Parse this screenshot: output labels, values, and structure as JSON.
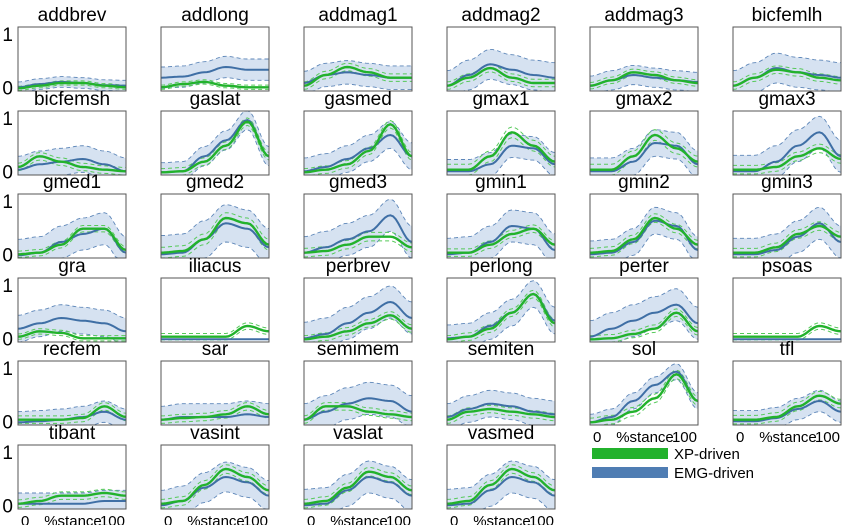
{
  "colors": {
    "xp_line": "#22b22c",
    "xp_dashed": "#56c95a",
    "emg_line": "#3f6fa5",
    "emg_band": "#d6e2f1",
    "emg_dashed": "#5d86b8",
    "frame": "#555555"
  },
  "legend": {
    "items": [
      {
        "label": "XP-driven",
        "color": "#22b22c"
      },
      {
        "label": "EMG-driven",
        "color": "#4f7db3"
      }
    ]
  },
  "x_axis": {
    "start_label": "0",
    "end_label": "100",
    "name": "%stance"
  },
  "chart_data": {
    "type": "line",
    "xlim": [
      0,
      100
    ],
    "ylim": [
      -0.05,
      1.15
    ],
    "yticks": [
      0,
      1
    ],
    "panels": [
      {
        "name": "addbrev",
        "xp": [
          0,
          0.05,
          0.1,
          0.1,
          0.05,
          0.02
        ],
        "emg": [
          0.02,
          0.08,
          0.12,
          0.1,
          0.06,
          0.05
        ],
        "emg_sd": 0.1,
        "xp_sd": 0.04
      },
      {
        "name": "addlong",
        "xp": [
          0.02,
          0.08,
          0.12,
          0.05,
          0.02,
          0.02
        ],
        "emg": [
          0.2,
          0.22,
          0.3,
          0.4,
          0.35,
          0.35
        ],
        "emg_sd": 0.2,
        "xp_sd": 0.04
      },
      {
        "name": "addmag1",
        "xp": [
          0.05,
          0.25,
          0.4,
          0.3,
          0.2,
          0.2
        ],
        "emg": [
          0.1,
          0.25,
          0.3,
          0.25,
          0.2,
          0.2
        ],
        "emg_sd": 0.22,
        "xp_sd": 0.07
      },
      {
        "name": "addmag2",
        "xp": [
          0.05,
          0.2,
          0.38,
          0.2,
          0.1,
          0.1
        ],
        "emg": [
          0.05,
          0.25,
          0.45,
          0.35,
          0.25,
          0.2
        ],
        "emg_sd": 0.28,
        "xp_sd": 0.07
      },
      {
        "name": "addmag3",
        "xp": [
          0.05,
          0.15,
          0.3,
          0.25,
          0.15,
          0.1
        ],
        "emg": [
          0.05,
          0.15,
          0.25,
          0.2,
          0.15,
          0.12
        ],
        "emg_sd": 0.18,
        "xp_sd": 0.06
      },
      {
        "name": "bicfemlh",
        "xp": [
          0.05,
          0.2,
          0.35,
          0.3,
          0.2,
          0.15
        ],
        "emg": [
          0.05,
          0.2,
          0.38,
          0.3,
          0.25,
          0.2
        ],
        "emg_sd": 0.28,
        "xp_sd": 0.07
      },
      {
        "name": "bicfemsh",
        "xp": [
          0.1,
          0.3,
          0.2,
          0.1,
          0.05,
          0.02
        ],
        "emg": [
          0.05,
          0.15,
          0.2,
          0.25,
          0.15,
          0.02
        ],
        "emg_sd": 0.25,
        "xp_sd": 0.07
      },
      {
        "name": "gaslat",
        "xp": [
          0,
          0.02,
          0.2,
          0.5,
          0.95,
          0.3
        ],
        "emg": [
          0,
          0.02,
          0.3,
          0.6,
          0.98,
          0.3
        ],
        "emg_sd": 0.18,
        "xp_sd": 0.07
      },
      {
        "name": "gasmed",
        "xp": [
          0,
          0.05,
          0.15,
          0.4,
          0.9,
          0.3
        ],
        "emg": [
          0.02,
          0.1,
          0.25,
          0.45,
          0.7,
          0.3
        ],
        "emg_sd": 0.25,
        "xp_sd": 0.07
      },
      {
        "name": "gmax1",
        "xp": [
          0.05,
          0.05,
          0.3,
          0.75,
          0.5,
          0.2
        ],
        "emg": [
          0.02,
          0.02,
          0.15,
          0.5,
          0.45,
          0.15
        ],
        "emg_sd": 0.22,
        "xp_sd": 0.1
      },
      {
        "name": "gmax2",
        "xp": [
          0.05,
          0.05,
          0.3,
          0.7,
          0.45,
          0.2
        ],
        "emg": [
          0.02,
          0.02,
          0.2,
          0.55,
          0.5,
          0.15
        ],
        "emg_sd": 0.25,
        "xp_sd": 0.1
      },
      {
        "name": "gmax3",
        "xp": [
          0.05,
          0.05,
          0.1,
          0.3,
          0.45,
          0.25
        ],
        "emg": [
          0.02,
          0.02,
          0.2,
          0.5,
          0.75,
          0.3
        ],
        "emg_sd": 0.3,
        "xp_sd": 0.08
      },
      {
        "name": "gmed1",
        "xp": [
          0.02,
          0.05,
          0.2,
          0.5,
          0.5,
          0.1
        ],
        "emg": [
          0,
          0.05,
          0.25,
          0.4,
          0.5,
          0.05
        ],
        "emg_sd": 0.3,
        "xp_sd": 0.06
      },
      {
        "name": "gmed2",
        "xp": [
          0.05,
          0.08,
          0.3,
          0.7,
          0.6,
          0.2
        ],
        "emg": [
          0.02,
          0.05,
          0.3,
          0.6,
          0.5,
          0.15
        ],
        "emg_sd": 0.35,
        "xp_sd": 0.1
      },
      {
        "name": "gmed3",
        "xp": [
          0.05,
          0.08,
          0.2,
          0.35,
          0.35,
          0.15
        ],
        "emg": [
          0.05,
          0.15,
          0.3,
          0.45,
          0.75,
          0.25
        ],
        "emg_sd": 0.3,
        "xp_sd": 0.08
      },
      {
        "name": "gmin1",
        "xp": [
          0.05,
          0.05,
          0.2,
          0.4,
          0.5,
          0.2
        ],
        "emg": [
          0.02,
          0.05,
          0.25,
          0.55,
          0.5,
          0.1
        ],
        "emg_sd": 0.3,
        "xp_sd": 0.07
      },
      {
        "name": "gmin2",
        "xp": [
          0.05,
          0.08,
          0.3,
          0.7,
          0.5,
          0.2
        ],
        "emg": [
          0.02,
          0.05,
          0.25,
          0.65,
          0.55,
          0.1
        ],
        "emg_sd": 0.25,
        "xp_sd": 0.08
      },
      {
        "name": "gmin3",
        "xp": [
          0.05,
          0.05,
          0.15,
          0.4,
          0.55,
          0.35
        ],
        "emg": [
          0.02,
          0.02,
          0.1,
          0.35,
          0.6,
          0.25
        ],
        "emg_sd": 0.3,
        "xp_sd": 0.08
      },
      {
        "name": "gra",
        "xp": [
          0.05,
          0.15,
          0.12,
          0.02,
          0.02,
          0.02
        ],
        "emg": [
          0.2,
          0.3,
          0.4,
          0.35,
          0.3,
          0.15
        ],
        "emg_sd": 0.25,
        "xp_sd": 0.05
      },
      {
        "name": "iliacus",
        "xp": [
          0.05,
          0.05,
          0.05,
          0.05,
          0.25,
          0.15
        ],
        "emg": [
          0,
          0,
          0,
          0,
          0,
          0
        ],
        "emg_sd": 0.0,
        "xp_sd": 0.06
      },
      {
        "name": "perbrev",
        "xp": [
          0,
          0.05,
          0.15,
          0.3,
          0.45,
          0.2
        ],
        "emg": [
          0.02,
          0.1,
          0.3,
          0.5,
          0.7,
          0.4
        ],
        "emg_sd": 0.3,
        "xp_sd": 0.07
      },
      {
        "name": "perlong",
        "xp": [
          0,
          0.05,
          0.2,
          0.5,
          0.85,
          0.3
        ],
        "emg": [
          0.02,
          0.05,
          0.25,
          0.5,
          0.85,
          0.35
        ],
        "emg_sd": 0.25,
        "xp_sd": 0.07
      },
      {
        "name": "perter",
        "xp": [
          0,
          0.02,
          0.1,
          0.2,
          0.5,
          0.15
        ],
        "emg": [
          0.05,
          0.2,
          0.35,
          0.5,
          0.65,
          0.3
        ],
        "emg_sd": 0.3,
        "xp_sd": 0.07
      },
      {
        "name": "psoas",
        "xp": [
          0.05,
          0.05,
          0.05,
          0.05,
          0.25,
          0.15
        ],
        "emg": [
          0,
          0,
          0,
          0,
          0,
          0
        ],
        "emg_sd": 0.0,
        "xp_sd": 0.06
      },
      {
        "name": "recfem",
        "xp": [
          0.05,
          0.05,
          0.05,
          0.08,
          0.3,
          0.1
        ],
        "emg": [
          0,
          0.02,
          0.05,
          0.1,
          0.2,
          0.05
        ],
        "emg_sd": 0.2,
        "xp_sd": 0.07
      },
      {
        "name": "sar",
        "xp": [
          0.05,
          0.08,
          0.1,
          0.15,
          0.3,
          0.15
        ],
        "emg": [
          0.05,
          0.1,
          0.1,
          0.1,
          0.15,
          0.1
        ],
        "emg_sd": 0.25,
        "xp_sd": 0.07
      },
      {
        "name": "semimem",
        "xp": [
          0.05,
          0.3,
          0.3,
          0.2,
          0.15,
          0.1
        ],
        "emg": [
          0.05,
          0.2,
          0.35,
          0.45,
          0.4,
          0.2
        ],
        "emg_sd": 0.3,
        "xp_sd": 0.07
      },
      {
        "name": "semiten",
        "xp": [
          0.05,
          0.2,
          0.25,
          0.2,
          0.15,
          0.1
        ],
        "emg": [
          0.1,
          0.25,
          0.35,
          0.3,
          0.2,
          0.15
        ],
        "emg_sd": 0.25,
        "xp_sd": 0.07
      },
      {
        "name": "sol",
        "xp": [
          0,
          0.05,
          0.2,
          0.45,
          0.9,
          0.4
        ],
        "emg": [
          0,
          0.1,
          0.4,
          0.7,
          0.95,
          0.4
        ],
        "emg_sd": 0.15,
        "xp_sd": 0.08
      },
      {
        "name": "tfl",
        "xp": [
          0.05,
          0.05,
          0.1,
          0.3,
          0.5,
          0.35
        ],
        "emg": [
          0.02,
          0.02,
          0.08,
          0.25,
          0.4,
          0.2
        ],
        "emg_sd": 0.2,
        "xp_sd": 0.08
      },
      {
        "name": "tibant",
        "xp": [
          0.05,
          0.1,
          0.2,
          0.2,
          0.25,
          0.2
        ],
        "emg": [
          0.05,
          0.05,
          0.05,
          0.05,
          0.1,
          0.1
        ],
        "emg_sd": 0.2,
        "xp_sd": 0.07
      },
      {
        "name": "vasint",
        "xp": [
          0.05,
          0.1,
          0.4,
          0.7,
          0.55,
          0.3
        ],
        "emg": [
          0.02,
          0.1,
          0.35,
          0.55,
          0.45,
          0.2
        ],
        "emg_sd": 0.28,
        "xp_sd": 0.08
      },
      {
        "name": "vaslat",
        "xp": [
          0.05,
          0.1,
          0.35,
          0.65,
          0.55,
          0.3
        ],
        "emg": [
          0.02,
          0.05,
          0.3,
          0.55,
          0.45,
          0.2
        ],
        "emg_sd": 0.3,
        "xp_sd": 0.08
      },
      {
        "name": "vasmed",
        "xp": [
          0.05,
          0.1,
          0.4,
          0.7,
          0.55,
          0.3
        ],
        "emg": [
          0.02,
          0.05,
          0.3,
          0.55,
          0.45,
          0.2
        ],
        "emg_sd": 0.3,
        "xp_sd": 0.08
      }
    ]
  }
}
